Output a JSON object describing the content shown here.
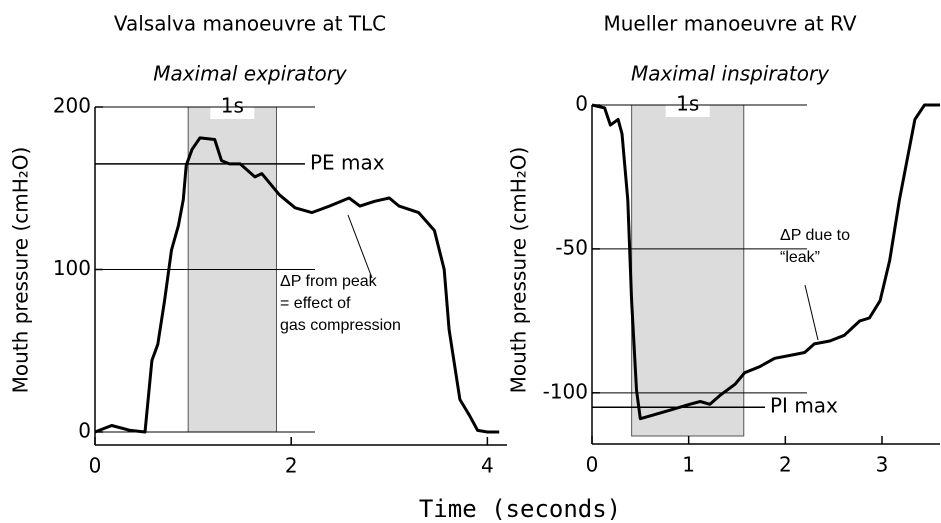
{
  "xlabel": "Time (seconds)",
  "chart_data": [
    {
      "type": "line",
      "title": "Valsalva manoeuvre at TLC",
      "subtitle": "Maximal expiratory",
      "ylabel": "Mouth pressure (cmH₂O)",
      "xlim": [
        0,
        4.2
      ],
      "xticks": [
        0,
        2,
        4
      ],
      "ylim": [
        0,
        200
      ],
      "yticks": [
        0,
        100,
        200
      ],
      "highlight": {
        "label": "1s",
        "x": [
          0.95,
          1.85
        ]
      },
      "reference_line": {
        "label": "PE max",
        "value": 165
      },
      "annotation": [
        "ΔP from peak",
        "= effect of",
        "gas compression"
      ],
      "series": [
        {
          "color": "#000000",
          "x": [
            0,
            0.17,
            0.36,
            0.51,
            0.58,
            0.64,
            0.71,
            0.78,
            0.85,
            0.9,
            0.93,
            0.99,
            1.07,
            1.22,
            1.29,
            1.37,
            1.48,
            1.63,
            1.7,
            1.88,
            2.04,
            2.21,
            2.39,
            2.59,
            2.7,
            2.85,
            3.0,
            3.1,
            3.3,
            3.46,
            3.56,
            3.61,
            3.72,
            3.82,
            3.9,
            4.0,
            4.12
          ],
          "values": [
            0,
            4,
            1,
            0,
            44,
            54,
            81,
            112,
            127,
            143,
            164,
            174,
            181,
            180,
            167,
            165,
            165,
            157,
            159,
            146,
            138,
            135,
            139,
            144,
            139,
            142,
            144,
            139,
            135,
            124,
            100,
            63,
            20,
            10,
            1,
            0,
            0
          ]
        }
      ]
    },
    {
      "type": "line",
      "title": "Mueller manoeuvre at RV",
      "subtitle": "Maximal inspiratory",
      "ylabel": "Mouth pressure (cmH₂O)",
      "xlim": [
        0,
        3.6
      ],
      "xticks": [
        0,
        1,
        2,
        3
      ],
      "ylim": [
        -115,
        0
      ],
      "yticks": [
        0,
        -50,
        -100
      ],
      "highlight": {
        "label": "1s",
        "x": [
          0.41,
          1.57
        ]
      },
      "reference_line": {
        "label": "PI max",
        "value": -105
      },
      "annotation": [
        "ΔP due to",
        "“leak”"
      ],
      "series": [
        {
          "color": "#000000",
          "x": [
            0,
            0.13,
            0.19,
            0.27,
            0.31,
            0.37,
            0.41,
            0.46,
            0.5,
            0.6,
            0.81,
            1.01,
            1.12,
            1.22,
            1.32,
            1.48,
            1.58,
            1.73,
            1.89,
            2.05,
            2.2,
            2.3,
            2.46,
            2.61,
            2.77,
            2.87,
            2.98,
            3.08,
            3.18,
            3.34,
            3.44,
            3.6
          ],
          "values": [
            0,
            -1,
            -7,
            -5,
            -10,
            -33,
            -68,
            -99,
            -109,
            -108,
            -106,
            -104,
            -103,
            -104,
            -101,
            -97,
            -93,
            -91,
            -88,
            -87,
            -86,
            -83,
            -82,
            -80,
            -75,
            -74,
            -68,
            -54,
            -33,
            -5,
            0,
            0
          ]
        }
      ]
    }
  ]
}
